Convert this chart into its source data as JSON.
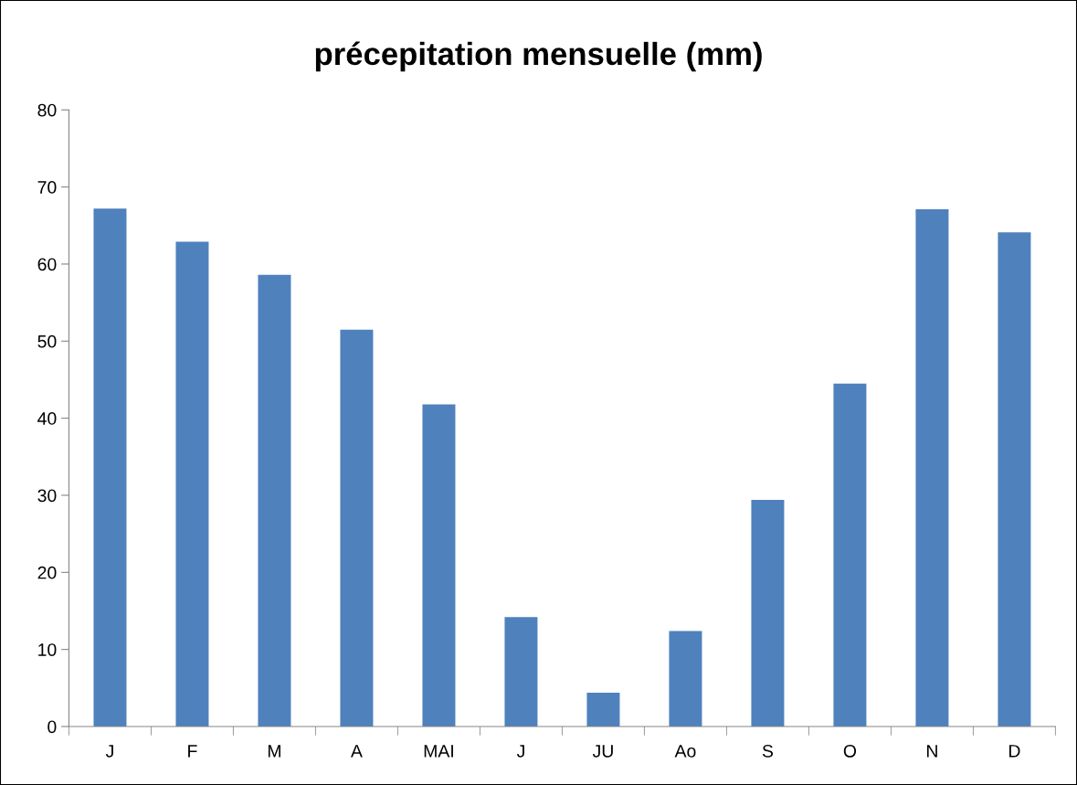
{
  "chart_data": {
    "type": "bar",
    "title": "précepitation mensuelle (mm)",
    "categories": [
      "J",
      "F",
      "M",
      "A",
      "MAI",
      "J",
      "JU",
      "Ao",
      "S",
      "O",
      "N",
      "D"
    ],
    "values": [
      67.2,
      62.9,
      58.6,
      51.5,
      41.8,
      14.2,
      4.4,
      12.4,
      29.4,
      44.5,
      67.1,
      64.1
    ],
    "color": "#4f81bd",
    "ylim": [
      0,
      80
    ],
    "yticks": [
      0,
      10,
      20,
      30,
      40,
      50,
      60,
      70,
      80
    ],
    "grid": false,
    "legend": false
  }
}
